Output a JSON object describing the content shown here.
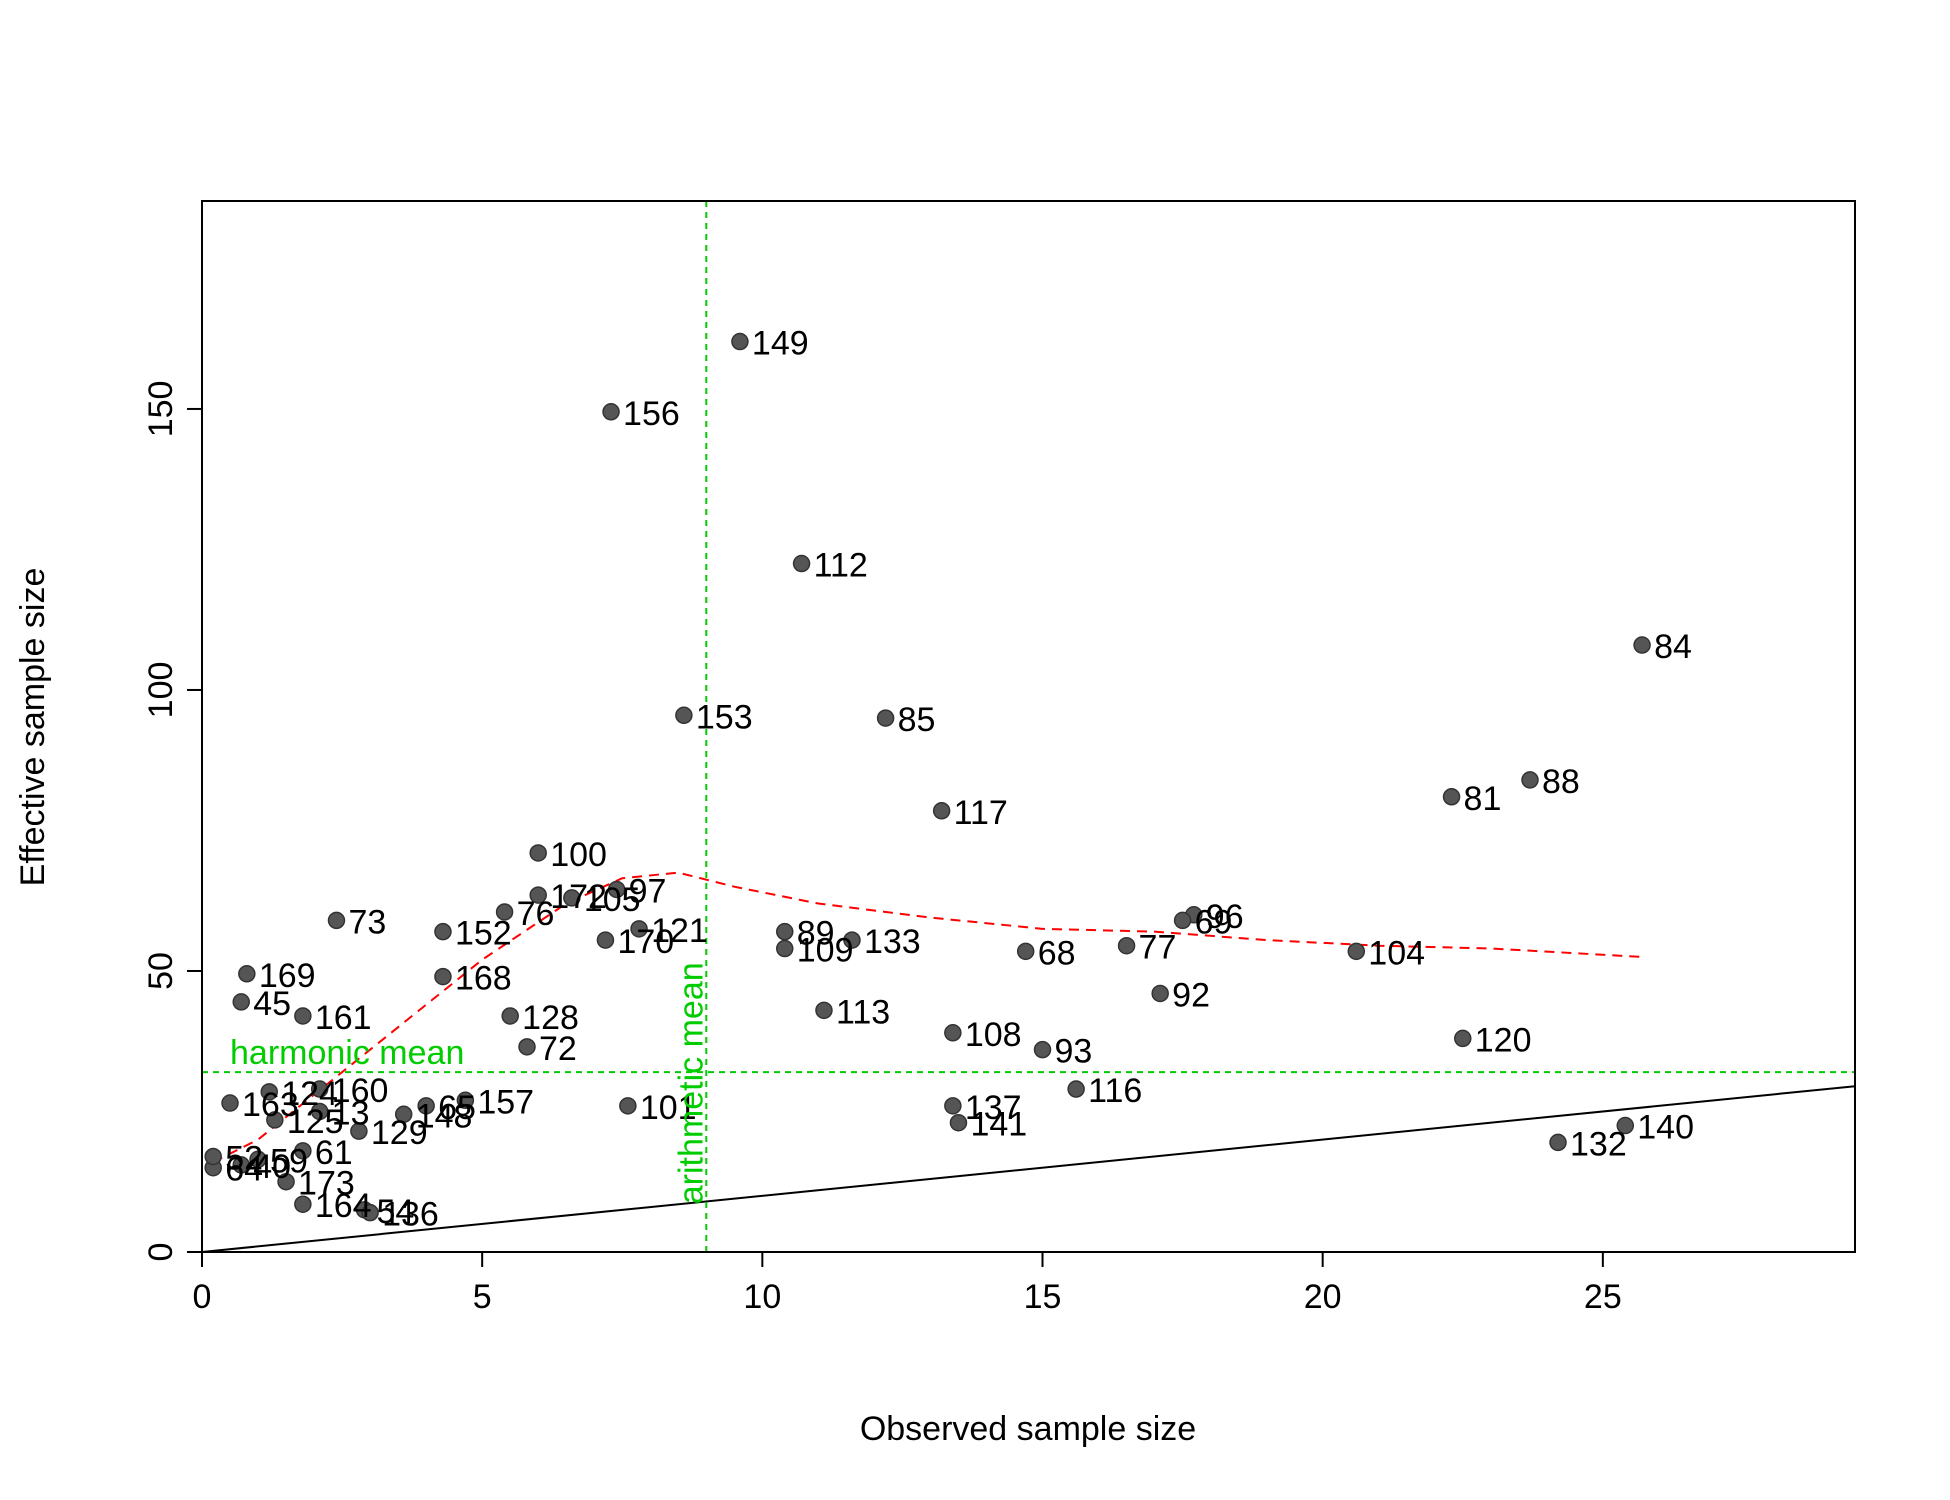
{
  "chart_data": {
    "type": "scatter",
    "xlabel": "Observed sample size",
    "ylabel": "Effective sample size",
    "xlim": [
      0,
      29.5
    ],
    "ylim": [
      0,
      187
    ],
    "xticks": [
      "0",
      "5",
      "10",
      "15",
      "20",
      "25"
    ],
    "yticks": [
      "0",
      "50",
      "100",
      "150"
    ],
    "points": [
      {
        "label": "149",
        "x": 9.6,
        "y": 162.0
      },
      {
        "label": "156",
        "x": 7.3,
        "y": 149.5
      },
      {
        "label": "112",
        "x": 10.7,
        "y": 122.5
      },
      {
        "label": "84",
        "x": 25.7,
        "y": 108.0
      },
      {
        "label": "153",
        "x": 8.6,
        "y": 95.5
      },
      {
        "label": "85",
        "x": 12.2,
        "y": 95.0
      },
      {
        "label": "81",
        "x": 22.3,
        "y": 81.0
      },
      {
        "label": "88",
        "x": 23.7,
        "y": 84.0
      },
      {
        "label": "117",
        "x": 13.2,
        "y": 78.5
      },
      {
        "label": "100",
        "x": 6.0,
        "y": 71.0
      },
      {
        "label": "172",
        "x": 6.0,
        "y": 63.5
      },
      {
        "label": "105",
        "x": 6.6,
        "y": 63.0
      },
      {
        "label": "97",
        "x": 7.4,
        "y": 64.5
      },
      {
        "label": "76",
        "x": 5.4,
        "y": 60.5
      },
      {
        "label": "73",
        "x": 2.4,
        "y": 59.0
      },
      {
        "label": "152",
        "x": 4.3,
        "y": 57.0
      },
      {
        "label": "121",
        "x": 7.8,
        "y": 57.5
      },
      {
        "label": "170",
        "x": 7.2,
        "y": 55.5
      },
      {
        "label": "89",
        "x": 10.4,
        "y": 57.0
      },
      {
        "label": "109",
        "x": 10.4,
        "y": 54.0
      },
      {
        "label": "133",
        "x": 11.6,
        "y": 55.5
      },
      {
        "label": "68",
        "x": 14.7,
        "y": 53.5
      },
      {
        "label": "77",
        "x": 16.5,
        "y": 54.5
      },
      {
        "label": "96",
        "x": 17.7,
        "y": 60.0
      },
      {
        "label": "69",
        "x": 17.5,
        "y": 59.0
      },
      {
        "label": "104",
        "x": 20.6,
        "y": 53.5
      },
      {
        "label": "169",
        "x": 0.8,
        "y": 49.5
      },
      {
        "label": "168",
        "x": 4.3,
        "y": 49.0
      },
      {
        "label": "45",
        "x": 0.7,
        "y": 44.5
      },
      {
        "label": "161",
        "x": 1.8,
        "y": 42.0
      },
      {
        "label": "128",
        "x": 5.5,
        "y": 42.0
      },
      {
        "label": "92",
        "x": 17.1,
        "y": 46.0
      },
      {
        "label": "113",
        "x": 11.1,
        "y": 43.0
      },
      {
        "label": "72",
        "x": 5.8,
        "y": 36.5
      },
      {
        "label": "108",
        "x": 13.4,
        "y": 39.0
      },
      {
        "label": "93",
        "x": 15.0,
        "y": 36.0
      },
      {
        "label": "120",
        "x": 22.5,
        "y": 38.0
      },
      {
        "label": "116",
        "x": 15.6,
        "y": 29.0
      },
      {
        "label": "137",
        "x": 13.4,
        "y": 26.0
      },
      {
        "label": "141",
        "x": 13.5,
        "y": 23.0
      },
      {
        "label": "101",
        "x": 7.6,
        "y": 26.0
      },
      {
        "label": "65",
        "x": 4.0,
        "y": 26.0
      },
      {
        "label": "157",
        "x": 4.7,
        "y": 27.0
      },
      {
        "label": "148",
        "x": 3.6,
        "y": 24.5
      },
      {
        "label": "160",
        "x": 2.1,
        "y": 29.0
      },
      {
        "label": "124",
        "x": 1.2,
        "y": 28.5
      },
      {
        "label": "163",
        "x": 0.5,
        "y": 26.5
      },
      {
        "label": "13",
        "x": 2.1,
        "y": 25.0
      },
      {
        "label": "125",
        "x": 1.3,
        "y": 23.5
      },
      {
        "label": "129",
        "x": 2.8,
        "y": 21.5
      },
      {
        "label": "61",
        "x": 1.8,
        "y": 18.0
      },
      {
        "label": "59",
        "x": 1.0,
        "y": 16.5
      },
      {
        "label": "40",
        "x": 0.7,
        "y": 15.5
      },
      {
        "label": "64",
        "x": 0.2,
        "y": 15.0
      },
      {
        "label": "52",
        "x": 0.2,
        "y": 17.0
      },
      {
        "label": "173",
        "x": 1.5,
        "y": 12.5
      },
      {
        "label": "164",
        "x": 1.8,
        "y": 8.5
      },
      {
        "label": "54",
        "x": 2.9,
        "y": 7.5
      },
      {
        "label": "136",
        "x": 3.0,
        "y": 7.0
      },
      {
        "label": "132",
        "x": 24.2,
        "y": 19.5
      },
      {
        "label": "140",
        "x": 25.4,
        "y": 22.5
      }
    ],
    "identity_line": [
      [
        0,
        0
      ],
      [
        29.5,
        29.5
      ]
    ],
    "loess_curve": [
      [
        0.2,
        16
      ],
      [
        1.0,
        20
      ],
      [
        2.0,
        28
      ],
      [
        3.5,
        40
      ],
      [
        5.0,
        52
      ],
      [
        6.5,
        62
      ],
      [
        7.5,
        66.5
      ],
      [
        8.5,
        67.5
      ],
      [
        9.5,
        65
      ],
      [
        11,
        62
      ],
      [
        13,
        59.5
      ],
      [
        15,
        57.5
      ],
      [
        17,
        57
      ],
      [
        19,
        55.5
      ],
      [
        21,
        54.5
      ],
      [
        23,
        54
      ],
      [
        25.7,
        52.5
      ]
    ],
    "harmonic_mean": {
      "label": "harmonic mean",
      "value": 32,
      "color": "#00cc00"
    },
    "arithmetic_mean": {
      "label": "arithmetic mean",
      "value": 9.0,
      "color": "#00cc00"
    },
    "point_color": "#555555",
    "curve_color": "#ff0000"
  }
}
